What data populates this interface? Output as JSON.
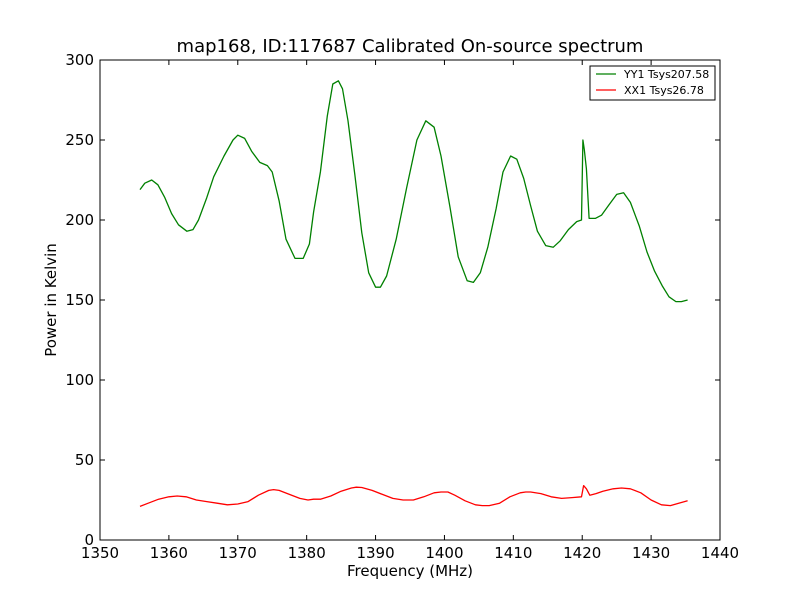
{
  "chart_data": {
    "type": "line",
    "title": "map168, ID:117687 Calibrated On-source spectrum",
    "xlabel": "Frequency (MHz)",
    "ylabel": "Power in Kelvin",
    "xlim": [
      1350,
      1440
    ],
    "ylim": [
      0,
      300
    ],
    "xticks": [
      "1350",
      "1360",
      "1370",
      "1380",
      "1390",
      "1400",
      "1410",
      "1420",
      "1430",
      "1440"
    ],
    "yticks": [
      "0",
      "50",
      "100",
      "150",
      "200",
      "250",
      "300"
    ],
    "grid": false,
    "legend_position": "top-right",
    "series": [
      {
        "name": "YY1 Tsys207.58",
        "color": "#008000",
        "x": [
          1355.8,
          1356.5,
          1357.5,
          1358.4,
          1359.4,
          1360.4,
          1361.4,
          1362.6,
          1363.5,
          1364.3,
          1365.5,
          1366.5,
          1368,
          1369.3,
          1370,
          1371,
          1372,
          1373.2,
          1374.3,
          1375,
          1376,
          1377,
          1378.3,
          1379.5,
          1380.4,
          1381,
          1382,
          1383,
          1383.8,
          1384.6,
          1385.2,
          1386,
          1387,
          1388,
          1389,
          1390,
          1390.7,
          1391.6,
          1393,
          1394.5,
          1396,
          1397.3,
          1398.5,
          1399.5,
          1400.8,
          1402,
          1403.3,
          1404.2,
          1405.2,
          1406.3,
          1407.5,
          1408.5,
          1409.6,
          1410.5,
          1411.5,
          1412.5,
          1413.5,
          1414.7,
          1415.8,
          1416.8,
          1418,
          1419.2,
          1419.9,
          1420.1,
          1420.3,
          1420.6,
          1421,
          1421.9,
          1422.8,
          1423.8,
          1425,
          1426,
          1427,
          1428.3,
          1429.4,
          1430.5,
          1431.6,
          1432.6,
          1433.6,
          1434.4,
          1435.3
        ],
        "values": [
          219,
          223,
          225,
          222,
          214,
          204,
          197,
          193,
          194,
          200,
          214,
          227,
          240,
          250,
          253,
          251,
          243,
          236,
          234,
          230,
          212,
          188,
          176,
          176,
          185,
          205,
          230,
          265,
          285,
          287,
          282,
          262,
          228,
          192,
          167,
          158,
          158,
          165,
          188,
          220,
          250,
          262,
          258,
          240,
          208,
          177,
          162,
          161,
          167,
          183,
          207,
          230,
          240,
          238,
          226,
          209,
          193,
          184,
          183,
          187,
          194,
          199,
          200,
          250,
          244,
          232,
          201,
          201,
          203,
          209,
          216,
          217,
          211,
          196,
          180,
          168,
          159,
          152,
          149,
          149,
          150
        ]
      },
      {
        "name": "XX1 Tsys26.78",
        "color": "#ff0000",
        "x": [
          1355.8,
          1357,
          1358.5,
          1360,
          1361.2,
          1362.5,
          1364,
          1365.5,
          1367,
          1368.5,
          1370,
          1371.5,
          1373,
          1374.5,
          1375.2,
          1376,
          1377.5,
          1379,
          1380.2,
          1381,
          1382,
          1383.5,
          1385,
          1386.5,
          1387.2,
          1388,
          1389.5,
          1391,
          1392.5,
          1394,
          1395.5,
          1397,
          1398.5,
          1399.5,
          1400.5,
          1401.5,
          1403,
          1404.5,
          1405.5,
          1406.5,
          1408,
          1409.5,
          1411,
          1411.8,
          1412.5,
          1414,
          1415.5,
          1417,
          1418.5,
          1419.9,
          1420.2,
          1420.6,
          1421.1,
          1422,
          1423,
          1424.5,
          1425.7,
          1427,
          1428.5,
          1430,
          1431.5,
          1432.8,
          1434,
          1435.3
        ],
        "values": [
          21,
          23,
          25.5,
          27,
          27.5,
          27,
          25,
          24,
          23,
          22,
          22.5,
          24,
          28,
          31,
          31.5,
          31,
          28.5,
          26,
          25,
          25.5,
          25.5,
          27.5,
          30.5,
          32.5,
          33,
          32.8,
          31,
          28.5,
          26,
          25,
          25,
          27,
          29.5,
          30,
          30,
          28,
          24.5,
          22,
          21.5,
          21.5,
          23,
          27,
          29.5,
          30,
          30,
          29,
          27,
          26,
          26.5,
          27,
          34,
          32,
          28,
          29,
          30.5,
          32,
          32.5,
          32,
          29.5,
          25,
          22,
          21.5,
          23,
          24.5
        ]
      }
    ]
  }
}
